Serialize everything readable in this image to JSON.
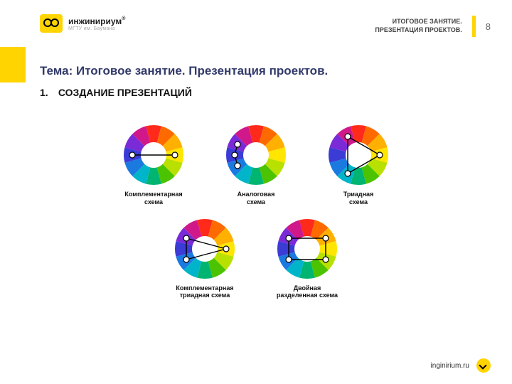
{
  "meta": {
    "page_number": "8",
    "website": "inginirium.ru"
  },
  "brand": {
    "name": "инжинириум",
    "tagline": "МГТУ им. Баумана",
    "trademark": "®",
    "accent": "#ffd400"
  },
  "header": {
    "line1": "ИТОГОВОЕ ЗАНЯТИЕ.",
    "line2": "ПРЕЗЕНТАЦИЯ ПРОЕКТОВ."
  },
  "topic": {
    "prefix": "Тема: ",
    "text": "Итоговое занятие. Презентация проектов."
  },
  "subtitle": {
    "num": "1.",
    "text": "СОЗДАНИЕ ПРЕЗЕНТАЦИЙ"
  },
  "wheel": {
    "segments": 12,
    "outer_r": 42,
    "inner_r": 18,
    "colors": [
      "#ff2a1a",
      "#ff6a00",
      "#ffb000",
      "#ffe600",
      "#b8e000",
      "#4cc300",
      "#00b571",
      "#00b5c9",
      "#1a7ae0",
      "#3b3bd6",
      "#7a2ad6",
      "#d0188a"
    ],
    "node_r": 4,
    "node_fill": "#ffffff",
    "node_stroke": "#000000",
    "line_stroke": "#000000",
    "line_w": 1.4
  },
  "schemes": [
    {
      "label": "Комплементарная\nсхема",
      "nodes_deg": [
        90,
        270
      ],
      "closed": false
    },
    {
      "label": "Аналоговая\nсхема",
      "nodes_deg": [
        240,
        270,
        300
      ],
      "closed": false
    },
    {
      "label": "Триадная\nсхема",
      "nodes_deg": [
        90,
        210,
        330
      ],
      "closed": true
    },
    {
      "label": "Комплементарная\nтриадная схема",
      "nodes_deg": [
        90,
        240,
        300
      ],
      "closed": true
    },
    {
      "label": "Двойная\nразделенная схема",
      "nodes_deg": [
        60,
        120,
        240,
        300
      ],
      "closed": true
    }
  ]
}
